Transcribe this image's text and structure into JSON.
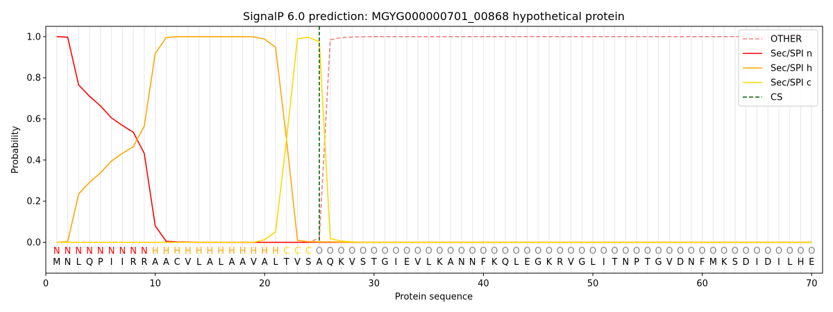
{
  "chart_data": {
    "type": "line",
    "title": "SignalP 6.0 prediction: MGYG000000701_00868 hypothetical protein",
    "xlabel": "Protein sequence",
    "ylabel": "Probability",
    "xlim": [
      0,
      71
    ],
    "ylim": [
      -0.15,
      1.05
    ],
    "x_ticks": [
      0,
      10,
      20,
      30,
      40,
      50,
      60,
      70
    ],
    "y_ticks": [
      0.0,
      0.2,
      0.4,
      0.6,
      0.8,
      1.0
    ],
    "x_tick_labels": [
      "0",
      "10",
      "20",
      "30",
      "40",
      "50",
      "60",
      "70"
    ],
    "y_tick_labels": [
      "0.0",
      "0.2",
      "0.4",
      "0.6",
      "0.8",
      "1.0"
    ],
    "grid": "vertical lines at each residue",
    "legend_position": "top-right",
    "sequence": "MNLQPIIRRAACVLALAAVALTVSAQKVSTGIEVLKANNFKQLEGKRVGLITNPTGVDNFMKSDIDILHE",
    "region_labels": "NNNNNNNNNHHHHHHHHHHHHCCCOOOOOOOOOOOOOOOOOOOOOOOOOOOOOOOOOOOOOOOOOOOOOO",
    "region_colors": {
      "N": "#ff0000",
      "H": "#ffa500",
      "C": "#ffd700",
      "O": "#808080"
    },
    "cleavage_site": 25,
    "series": [
      {
        "name": "OTHER",
        "color": "#f08080",
        "style": "dashed",
        "values": [
          0,
          0,
          0,
          0,
          0,
          0,
          0,
          0,
          0,
          0,
          0,
          0,
          0,
          0,
          0,
          0,
          0,
          0,
          0,
          0,
          0,
          0,
          0,
          0,
          0.02,
          0.985,
          0.995,
          0.998,
          0.999,
          1,
          1,
          1,
          1,
          1,
          1,
          1,
          1,
          1,
          1,
          1,
          1,
          1,
          1,
          1,
          1,
          1,
          1,
          1,
          1,
          1,
          1,
          1,
          1,
          1,
          1,
          1,
          1,
          1,
          1,
          1,
          1,
          1,
          1,
          1,
          1,
          1,
          1,
          1,
          1,
          1
        ]
      },
      {
        "name": "Sec/SPI n",
        "color": "#ff0000",
        "style": "solid",
        "values": [
          1.0,
          0.997,
          0.765,
          0.71,
          0.663,
          0.605,
          0.568,
          0.535,
          0.432,
          0.08,
          0.005,
          0.002,
          0.001,
          0,
          0,
          0,
          0,
          0,
          0,
          0,
          0,
          0,
          0,
          0,
          0,
          0,
          0,
          0,
          0,
          0,
          0,
          0,
          0,
          0,
          0,
          0,
          0,
          0,
          0,
          0,
          0,
          0,
          0,
          0,
          0,
          0,
          0,
          0,
          0,
          0,
          0,
          0,
          0,
          0,
          0,
          0,
          0,
          0,
          0,
          0,
          0,
          0,
          0,
          0,
          0,
          0,
          0,
          0,
          0,
          0
        ]
      },
      {
        "name": "Sec/SPI h",
        "color": "#ffa500",
        "style": "solid",
        "values": [
          0,
          0.003,
          0.235,
          0.292,
          0.338,
          0.395,
          0.433,
          0.465,
          0.565,
          0.918,
          0.995,
          1.0,
          1.0,
          1.0,
          1.0,
          1.0,
          1.0,
          1.0,
          0.999,
          0.988,
          0.948,
          0.5,
          0.01,
          0.003,
          0.002,
          0.002,
          0.001,
          0,
          0,
          0,
          0,
          0,
          0,
          0,
          0,
          0,
          0,
          0,
          0,
          0,
          0,
          0,
          0,
          0,
          0,
          0,
          0,
          0,
          0,
          0,
          0,
          0,
          0,
          0,
          0,
          0,
          0,
          0,
          0,
          0,
          0,
          0,
          0,
          0,
          0,
          0,
          0,
          0,
          0,
          0
        ]
      },
      {
        "name": "Sec/SPI c",
        "color": "#ffd700",
        "style": "solid",
        "values": [
          0,
          0,
          0,
          0,
          0,
          0,
          0,
          0,
          0,
          0,
          0,
          0,
          0,
          0,
          0,
          0,
          0,
          0,
          0,
          0.013,
          0.05,
          0.5,
          0.99,
          0.997,
          0.975,
          0.018,
          0.006,
          0.002,
          0,
          0,
          0,
          0,
          0,
          0,
          0,
          0,
          0,
          0,
          0,
          0,
          0,
          0,
          0,
          0,
          0,
          0,
          0,
          0,
          0,
          0,
          0,
          0,
          0,
          0,
          0,
          0,
          0,
          0,
          0,
          0,
          0,
          0,
          0,
          0,
          0,
          0,
          0,
          0,
          0,
          0
        ]
      },
      {
        "name": "CS",
        "color": "#006400",
        "style": "dashed"
      }
    ]
  }
}
